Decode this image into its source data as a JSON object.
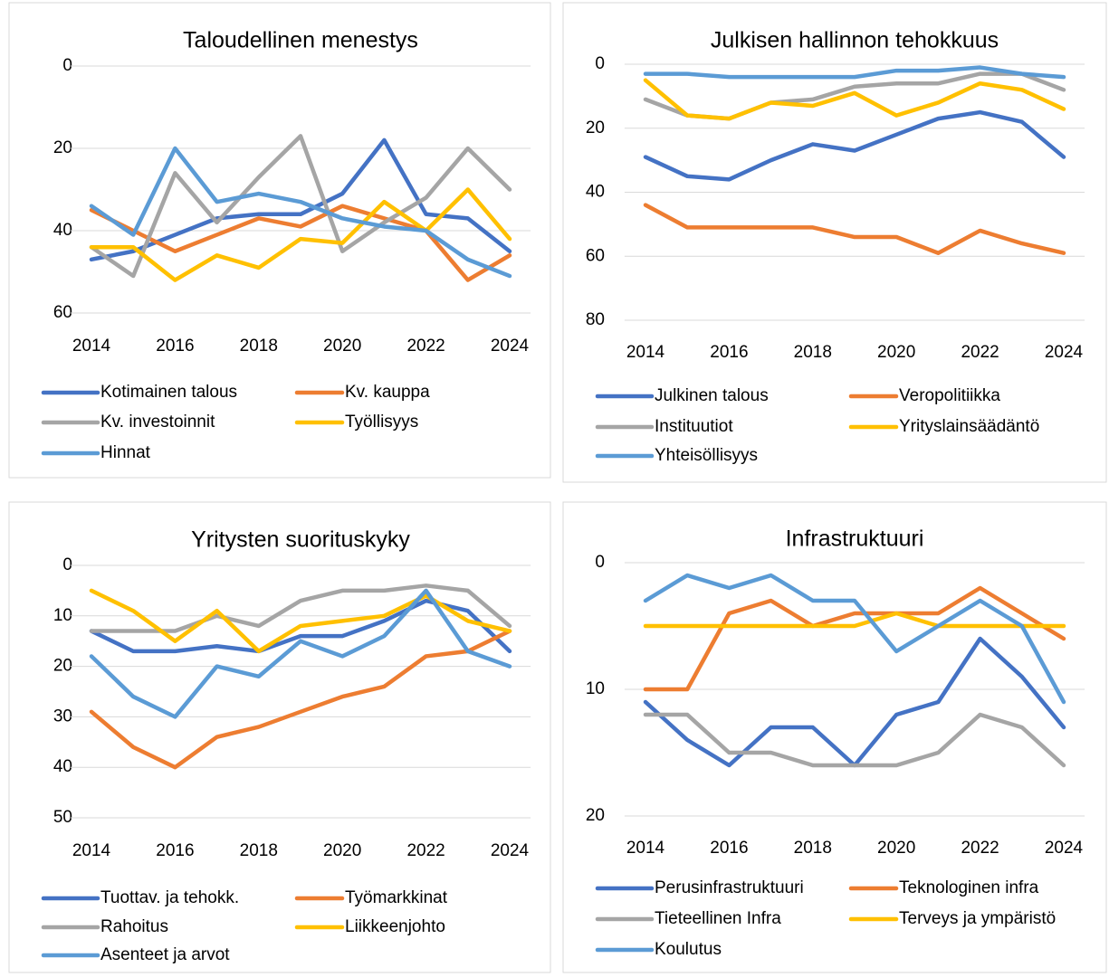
{
  "chart_data": [
    {
      "type": "line",
      "title": "Taloudellinen menestys",
      "y_inverted": true,
      "grid": true,
      "x": [
        2014,
        2015,
        2016,
        2017,
        2018,
        2019,
        2020,
        2021,
        2022,
        2023,
        2024
      ],
      "xlim": [
        2014,
        2024
      ],
      "xticks": [
        2014,
        2016,
        2018,
        2020,
        2022,
        2024
      ],
      "ylim": [
        0,
        60
      ],
      "yticks": [
        0,
        20,
        40,
        60
      ],
      "series": [
        {
          "name": "Kotimainen talous",
          "color": "#4472c4",
          "values": [
            47,
            45,
            41,
            37,
            36,
            36,
            31,
            18,
            36,
            37,
            45
          ]
        },
        {
          "name": "Kv. kauppa",
          "color": "#ed7d31",
          "values": [
            35,
            40,
            45,
            41,
            37,
            39,
            34,
            37,
            40,
            52,
            46
          ]
        },
        {
          "name": "Kv. investoinnit",
          "color": "#a5a5a5",
          "values": [
            44,
            51,
            26,
            38,
            27,
            17,
            45,
            38,
            32,
            20,
            30
          ]
        },
        {
          "name": "Työllisyys",
          "color": "#ffc000",
          "values": [
            44,
            44,
            52,
            46,
            49,
            42,
            43,
            33,
            40,
            30,
            42
          ]
        },
        {
          "name": "Hinnat",
          "color": "#5b9bd5",
          "values": [
            34,
            41,
            20,
            33,
            31,
            33,
            37,
            39,
            40,
            47,
            51
          ]
        }
      ]
    },
    {
      "type": "line",
      "title": "Julkisen hallinnon tehokkuus",
      "y_inverted": true,
      "grid": true,
      "x": [
        2014,
        2015,
        2016,
        2017,
        2018,
        2019,
        2020,
        2021,
        2022,
        2023,
        2024
      ],
      "xlim": [
        2014,
        2024
      ],
      "xticks": [
        2014,
        2016,
        2018,
        2020,
        2022,
        2024
      ],
      "ylim": [
        0,
        80
      ],
      "yticks": [
        0,
        20,
        40,
        60,
        80
      ],
      "series": [
        {
          "name": "Julkinen talous",
          "color": "#4472c4",
          "values": [
            29,
            35,
            36,
            30,
            25,
            27,
            22,
            17,
            15,
            18,
            29
          ]
        },
        {
          "name": "Veropolitiikka",
          "color": "#ed7d31",
          "values": [
            44,
            51,
            51,
            51,
            51,
            54,
            54,
            59,
            52,
            56,
            59
          ]
        },
        {
          "name": "Instituutiot",
          "color": "#a5a5a5",
          "values": [
            11,
            16,
            17,
            12,
            11,
            7,
            6,
            6,
            3,
            3,
            8
          ]
        },
        {
          "name": "Yrityslainsäädäntö",
          "color": "#ffc000",
          "values": [
            5,
            16,
            17,
            12,
            13,
            9,
            16,
            12,
            6,
            8,
            14
          ]
        },
        {
          "name": "Yhteisöllisyys",
          "color": "#5b9bd5",
          "values": [
            3,
            3,
            4,
            4,
            4,
            4,
            2,
            2,
            1,
            3,
            4
          ]
        }
      ]
    },
    {
      "type": "line",
      "title": "Yritysten suorituskyky",
      "y_inverted": true,
      "grid": true,
      "x": [
        2014,
        2015,
        2016,
        2017,
        2018,
        2019,
        2020,
        2021,
        2022,
        2023,
        2024
      ],
      "xlim": [
        2014,
        2024
      ],
      "xticks": [
        2014,
        2016,
        2018,
        2020,
        2022,
        2024
      ],
      "ylim": [
        0,
        50
      ],
      "yticks": [
        0,
        10,
        20,
        30,
        40,
        50
      ],
      "series": [
        {
          "name": "Tuottav. ja tehokk.",
          "color": "#4472c4",
          "values": [
            13,
            17,
            17,
            16,
            17,
            14,
            14,
            11,
            7,
            9,
            17
          ]
        },
        {
          "name": "Työmarkkinat",
          "color": "#ed7d31",
          "values": [
            29,
            36,
            40,
            34,
            32,
            29,
            26,
            24,
            18,
            17,
            13
          ]
        },
        {
          "name": "Rahoitus",
          "color": "#a5a5a5",
          "values": [
            13,
            13,
            13,
            10,
            12,
            7,
            5,
            5,
            4,
            5,
            12
          ]
        },
        {
          "name": "Liikkeenjohto",
          "color": "#ffc000",
          "values": [
            5,
            9,
            15,
            9,
            17,
            12,
            11,
            10,
            6,
            11,
            13
          ]
        },
        {
          "name": "Asenteet ja arvot",
          "color": "#5b9bd5",
          "values": [
            18,
            26,
            30,
            20,
            22,
            15,
            18,
            14,
            5,
            17,
            20
          ]
        }
      ]
    },
    {
      "type": "line",
      "title": "Infrastruktuuri",
      "y_inverted": true,
      "grid": true,
      "x": [
        2014,
        2015,
        2016,
        2017,
        2018,
        2019,
        2020,
        2021,
        2022,
        2023,
        2024
      ],
      "xlim": [
        2014,
        2024
      ],
      "xticks": [
        2014,
        2016,
        2018,
        2020,
        2022,
        2024
      ],
      "ylim": [
        0,
        20
      ],
      "yticks": [
        0,
        10,
        20
      ],
      "series": [
        {
          "name": "Perusinfrastruktuuri",
          "color": "#4472c4",
          "values": [
            11,
            14,
            16,
            13,
            13,
            16,
            12,
            11,
            6,
            9,
            13
          ]
        },
        {
          "name": "Teknologinen infra",
          "color": "#ed7d31",
          "values": [
            10,
            10,
            4,
            3,
            5,
            4,
            4,
            4,
            2,
            4,
            6
          ]
        },
        {
          "name": "Tieteellinen Infra",
          "color": "#a5a5a5",
          "values": [
            12,
            12,
            15,
            15,
            16,
            16,
            16,
            15,
            12,
            13,
            16
          ]
        },
        {
          "name": "Terveys ja ympäristö",
          "color": "#ffc000",
          "values": [
            5,
            5,
            5,
            5,
            5,
            5,
            4,
            5,
            5,
            5,
            5
          ]
        },
        {
          "name": "Koulutus",
          "color": "#5b9bd5",
          "values": [
            3,
            1,
            2,
            1,
            3,
            3,
            7,
            5,
            3,
            5,
            11
          ]
        }
      ]
    }
  ]
}
